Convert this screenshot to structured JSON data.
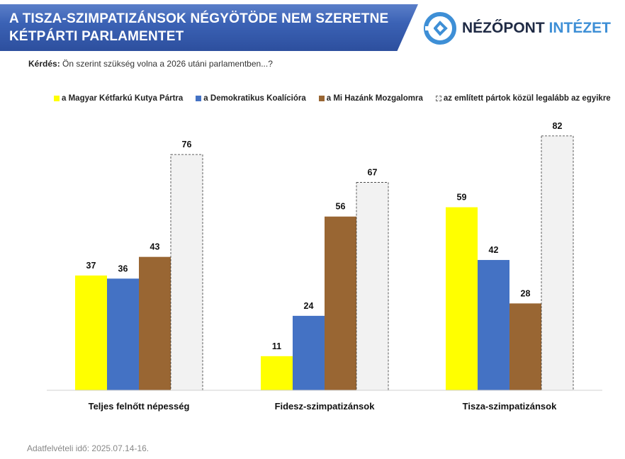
{
  "header": {
    "title": "A TISZA-SZIMPATIZÁNSOK NÉGYÖTÖDE NEM SZERETNE KÉTPÁRTI PARLAMENTET",
    "logo_main": "NÉZŐPONT",
    "logo_accent": "INTÉZET"
  },
  "question": {
    "label": "Kérdés:",
    "text": "Ön szerint szükség volna a 2026 utáni parlamentben...?"
  },
  "footer": "Adatfelvételi idő: 2025.07.14-16.",
  "chart_data": {
    "type": "bar",
    "categories": [
      "Teljes felnőtt népesség",
      "Fidesz-szimpatizánsok",
      "Tisza-szimpatizánsok"
    ],
    "series": [
      {
        "name": "a Magyar Kétfarkú Kutya Pártra",
        "color": "#ffff00",
        "values": [
          37,
          11,
          59
        ]
      },
      {
        "name": "a Demokratikus Koalícióra",
        "color": "#4472c4",
        "values": [
          36,
          24,
          42
        ]
      },
      {
        "name": "a Mi Hazánk Mozgalomra",
        "color": "#996633",
        "values": [
          43,
          56,
          28
        ]
      },
      {
        "name": "az említett pártok közül legalább az egyikre",
        "color": "#f2f2f2",
        "values": [
          76,
          67,
          82
        ]
      }
    ],
    "ylim": [
      0,
      100
    ],
    "grid": false,
    "legend": "top"
  }
}
